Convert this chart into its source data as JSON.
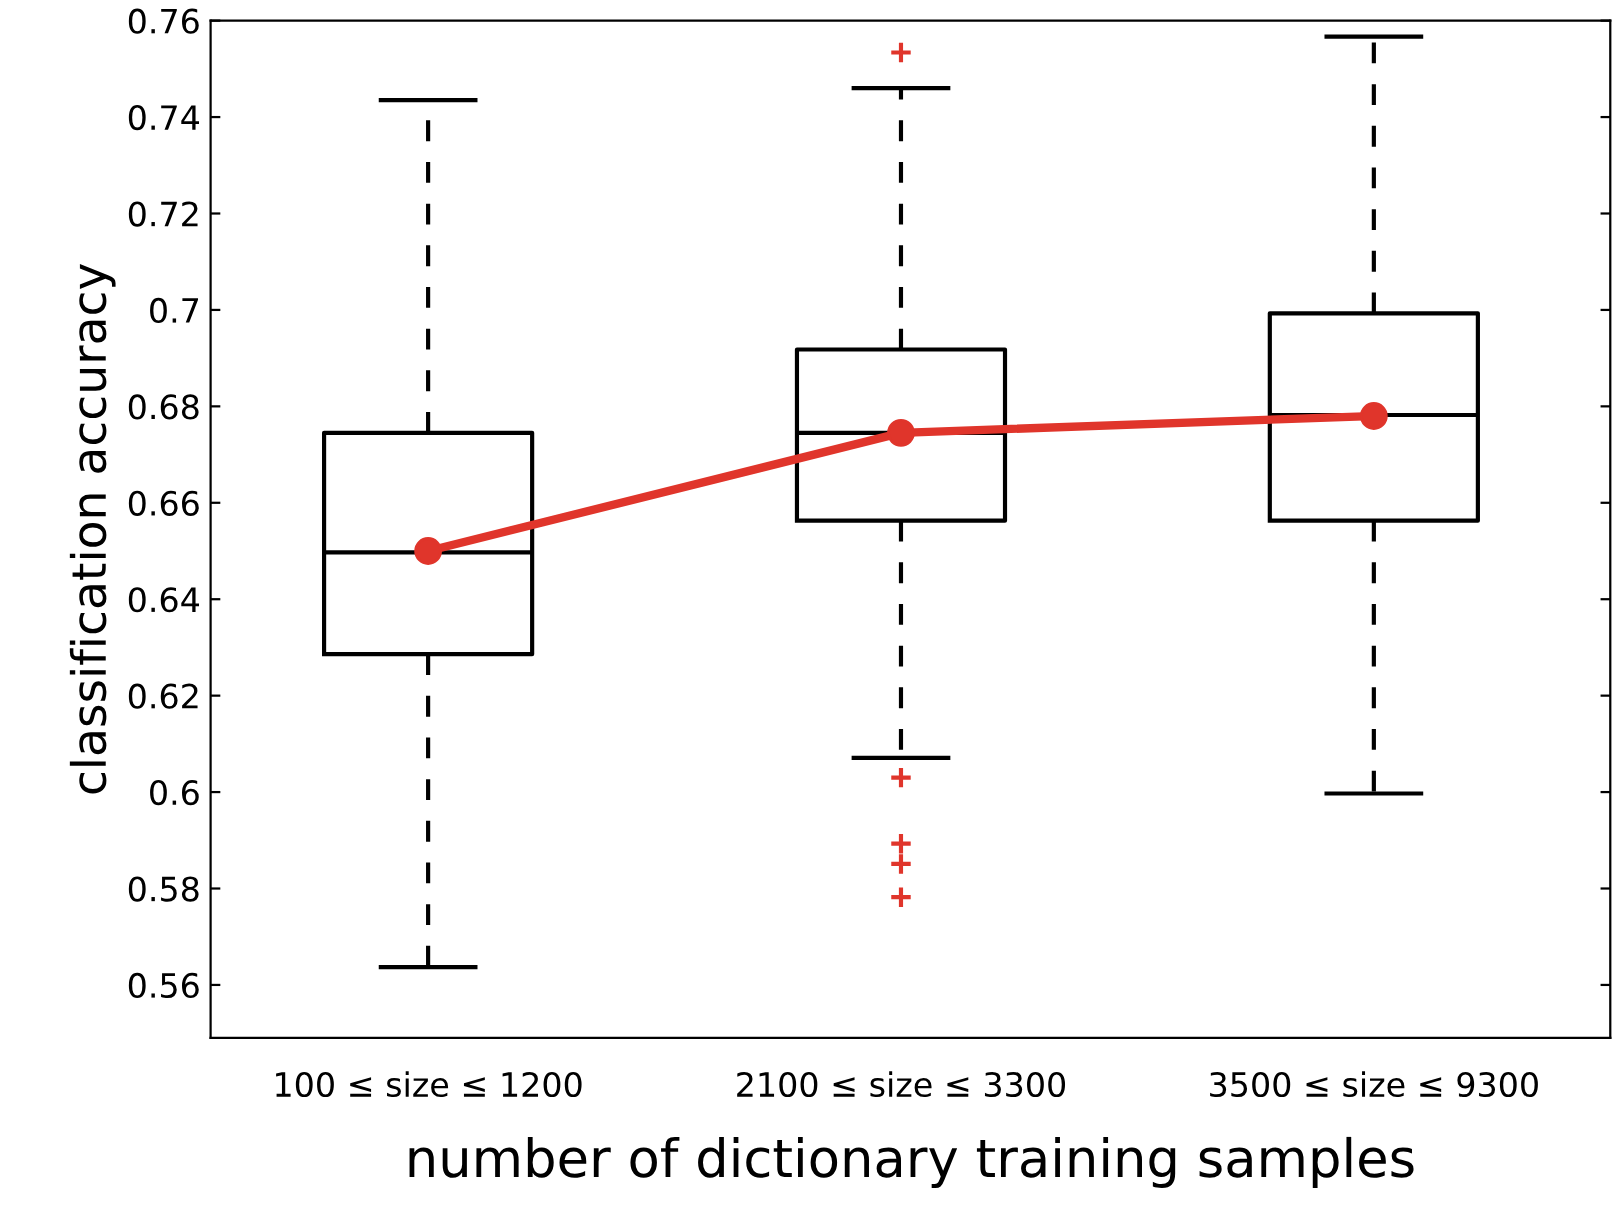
{
  "chart_data": {
    "type": "box",
    "xlabel": "number of dictionary training samples",
    "ylabel": "classification accuracy",
    "categories": [
      "100 ≤ size ≤ 1200",
      "2100 ≤ size ≤ 3300",
      "3500 ≤ size ≤ 9300"
    ],
    "boxes": [
      {
        "low": 0.5637,
        "q1": 0.6286,
        "median": 0.6497,
        "q3": 0.6745,
        "high": 0.7435
      },
      {
        "low": 0.6071,
        "q1": 0.6563,
        "median": 0.6745,
        "q3": 0.6918,
        "high": 0.746,
        "outliers": [
          0.7534,
          0.603,
          0.5893,
          0.5851,
          0.5782
        ]
      },
      {
        "low": 0.5997,
        "q1": 0.6563,
        "median": 0.6782,
        "q3": 0.6993,
        "high": 0.7567
      }
    ],
    "series": [
      {
        "type": "line",
        "color": "#e0352b",
        "marker": "circle",
        "values": [
          0.65,
          0.6745,
          0.678
        ]
      }
    ],
    "ylim": [
      0.549,
      0.76
    ],
    "yticks": [
      0.56,
      0.58,
      0.6,
      0.62,
      0.64,
      0.66,
      0.68,
      0.7,
      0.72,
      0.74,
      0.76
    ],
    "grid": false,
    "legend": false
  }
}
